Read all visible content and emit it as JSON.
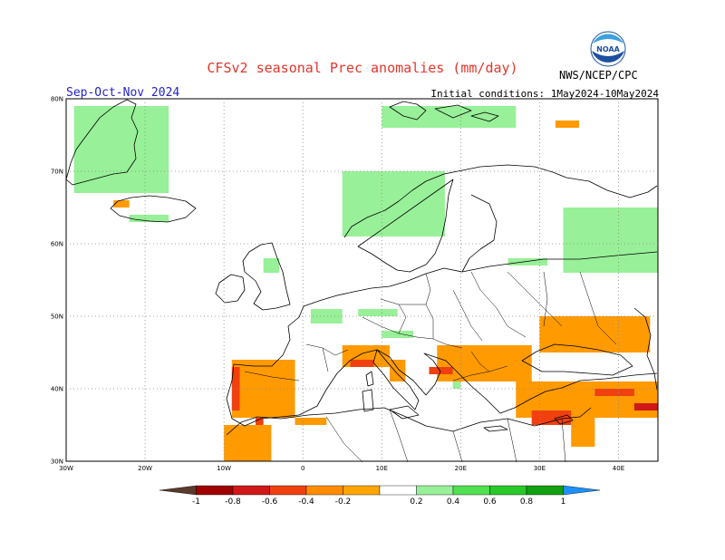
{
  "header": {
    "title": "CFSv2 seasonal Prec anomalies (mm/day)",
    "season": "Sep-Oct-Nov 2024",
    "initial_conditions": "Initial conditions: 1May2024-10May2024",
    "organization": "NWS/NCEP/CPC",
    "logo_text": "NOAA"
  },
  "map": {
    "lat_labels": [
      "80N",
      "70N",
      "60N",
      "50N",
      "40N",
      "30N"
    ],
    "lon_labels": [
      "30W",
      "20W",
      "10W",
      "0",
      "10E",
      "20E",
      "30E",
      "40E"
    ],
    "lat_range": [
      30,
      80
    ],
    "lon_range": [
      -30,
      45
    ],
    "grid": true
  },
  "colorbar": {
    "labels": [
      "-1",
      "-0.8",
      "-0.6",
      "-0.4",
      "-0.2",
      "0.2",
      "0.4",
      "0.6",
      "0.8",
      "1"
    ],
    "colors": [
      "#5a3a2a",
      "#a00000",
      "#d01818",
      "#f04010",
      "#ff8c00",
      "#ffa500",
      "#ffffff",
      "#98f098",
      "#50e050",
      "#28c828",
      "#10a010",
      "#1e90ff"
    ]
  },
  "anomaly_regions": [
    {
      "name": "greenland-wet",
      "level": 0.3,
      "lat": [
        67,
        79
      ],
      "lon": [
        -29,
        -17
      ]
    },
    {
      "name": "svalbard-wet",
      "level": 0.3,
      "lat": [
        76,
        79
      ],
      "lon": [
        10,
        27
      ]
    },
    {
      "name": "novaya-dry",
      "level": -0.3,
      "lat": [
        76,
        77
      ],
      "lon": [
        32,
        35
      ]
    },
    {
      "name": "iceland-wet",
      "level": 0.3,
      "lat": [
        63,
        64
      ],
      "lon": [
        -22,
        -17
      ]
    },
    {
      "name": "iceland-dry",
      "level": -0.3,
      "lat": [
        65,
        66
      ],
      "lon": [
        -24,
        -22
      ]
    },
    {
      "name": "norway-wet",
      "level": 0.3,
      "lat": [
        61,
        70
      ],
      "lon": [
        5,
        18
      ]
    },
    {
      "name": "russia-wet",
      "level": 0.3,
      "lat": [
        56,
        65
      ],
      "lon": [
        33,
        45
      ]
    },
    {
      "name": "baltic-wet",
      "level": 0.3,
      "lat": [
        57,
        58
      ],
      "lon": [
        26,
        31
      ]
    },
    {
      "name": "scotland-wet",
      "level": 0.3,
      "lat": [
        56,
        58
      ],
      "lon": [
        -5,
        -3
      ]
    },
    {
      "name": "benelux-wet",
      "level": 0.3,
      "lat": [
        49,
        51
      ],
      "lon": [
        1,
        5
      ]
    },
    {
      "name": "germany-wet",
      "level": 0.3,
      "lat": [
        50,
        51
      ],
      "lon": [
        7,
        12
      ]
    },
    {
      "name": "alps-wet",
      "level": 0.3,
      "lat": [
        47,
        48
      ],
      "lon": [
        10,
        14
      ]
    },
    {
      "name": "adriatic-wet",
      "level": 0.3,
      "lat": [
        40,
        42
      ],
      "lon": [
        19,
        20
      ]
    },
    {
      "name": "iberia-dry",
      "level": -0.3,
      "lat": [
        36,
        44
      ],
      "lon": [
        -9,
        -1
      ]
    },
    {
      "name": "iberia-west-dry",
      "level": -0.5,
      "lat": [
        37,
        43
      ],
      "lon": [
        -9,
        -8
      ]
    },
    {
      "name": "morocco-dry",
      "level": -0.3,
      "lat": [
        30,
        35
      ],
      "lon": [
        -10,
        -4
      ]
    },
    {
      "name": "gibraltar-dry",
      "level": -0.5,
      "lat": [
        35,
        36
      ],
      "lon": [
        -6,
        -5
      ]
    },
    {
      "name": "algeria-dry",
      "level": -0.3,
      "lat": [
        35,
        36
      ],
      "lon": [
        -1,
        3
      ]
    },
    {
      "name": "france-south-dry",
      "level": -0.3,
      "lat": [
        43,
        46
      ],
      "lon": [
        5,
        11
      ]
    },
    {
      "name": "nw-italy-dry",
      "level": -0.5,
      "lat": [
        43,
        44
      ],
      "lon": [
        6,
        9
      ]
    },
    {
      "name": "italy-dry",
      "level": -0.3,
      "lat": [
        41,
        44
      ],
      "lon": [
        11,
        13
      ]
    },
    {
      "name": "balkans-dry",
      "level": -0.3,
      "lat": [
        41,
        46
      ],
      "lon": [
        17,
        29
      ]
    },
    {
      "name": "croatia-dry",
      "level": -0.5,
      "lat": [
        42,
        43
      ],
      "lon": [
        16,
        19
      ]
    },
    {
      "name": "ukraine-dry",
      "level": -0.3,
      "lat": [
        45,
        50
      ],
      "lon": [
        30,
        44
      ]
    },
    {
      "name": "turkey-dry",
      "level": -0.3,
      "lat": [
        36,
        41
      ],
      "lon": [
        27,
        45
      ]
    },
    {
      "name": "turkey-east-dry",
      "level": -0.5,
      "lat": [
        39,
        40
      ],
      "lon": [
        37,
        42
      ]
    },
    {
      "name": "cyprus-dry",
      "level": -0.5,
      "lat": [
        35,
        37
      ],
      "lon": [
        29,
        34
      ]
    },
    {
      "name": "iran-dry",
      "level": -0.7,
      "lat": [
        37,
        38
      ],
      "lon": [
        42,
        45
      ]
    },
    {
      "name": "levant-dry",
      "level": -0.3,
      "lat": [
        32,
        36
      ],
      "lon": [
        34,
        37
      ]
    }
  ]
}
